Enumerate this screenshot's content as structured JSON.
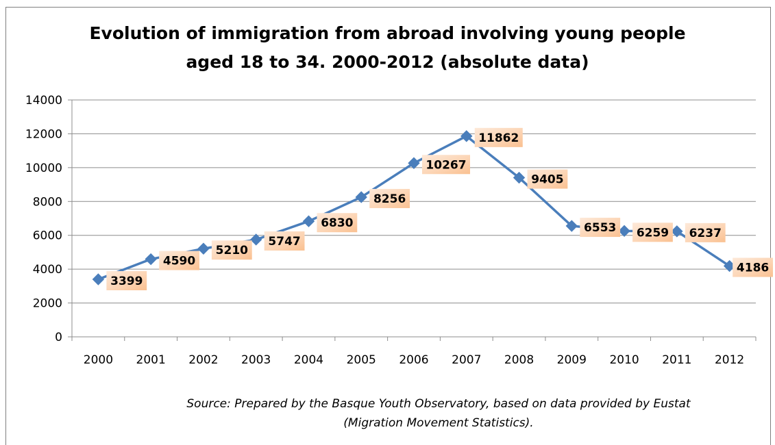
{
  "chart_data": {
    "type": "line",
    "title_lines": [
      "Evolution of immigration from abroad involving young people",
      "aged 18 to 34. 2000-2012 (absolute data)"
    ],
    "xlabel": "",
    "ylabel": "",
    "categories": [
      "2000",
      "2001",
      "2002",
      "2003",
      "2004",
      "2005",
      "2006",
      "2007",
      "2008",
      "2009",
      "2010",
      "2011",
      "2012"
    ],
    "series": [
      {
        "values": [
          3399,
          4590,
          5210,
          5747,
          6830,
          8256,
          10267,
          11862,
          9405,
          6553,
          6259,
          6237,
          4186
        ],
        "color": "#4a7ebb",
        "marker": "diamond"
      }
    ],
    "ylim": [
      0,
      14000
    ],
    "yticks": [
      0,
      2000,
      4000,
      6000,
      8000,
      10000,
      12000,
      14000
    ],
    "grid": "horizontal",
    "data_labels": true,
    "data_label_style": "orange-gradient box"
  },
  "source_lines": [
    "Source: Prepared by the Basque Youth Observatory, based on data provided by Eustat",
    "(Migration Movement Statistics)."
  ],
  "colors": {
    "series": "#4a7ebb",
    "gridline": "#8c8c8c",
    "axis": "#8c8c8c",
    "label_box_light": "#fde9d9",
    "label_box_dark": "#fac090"
  }
}
